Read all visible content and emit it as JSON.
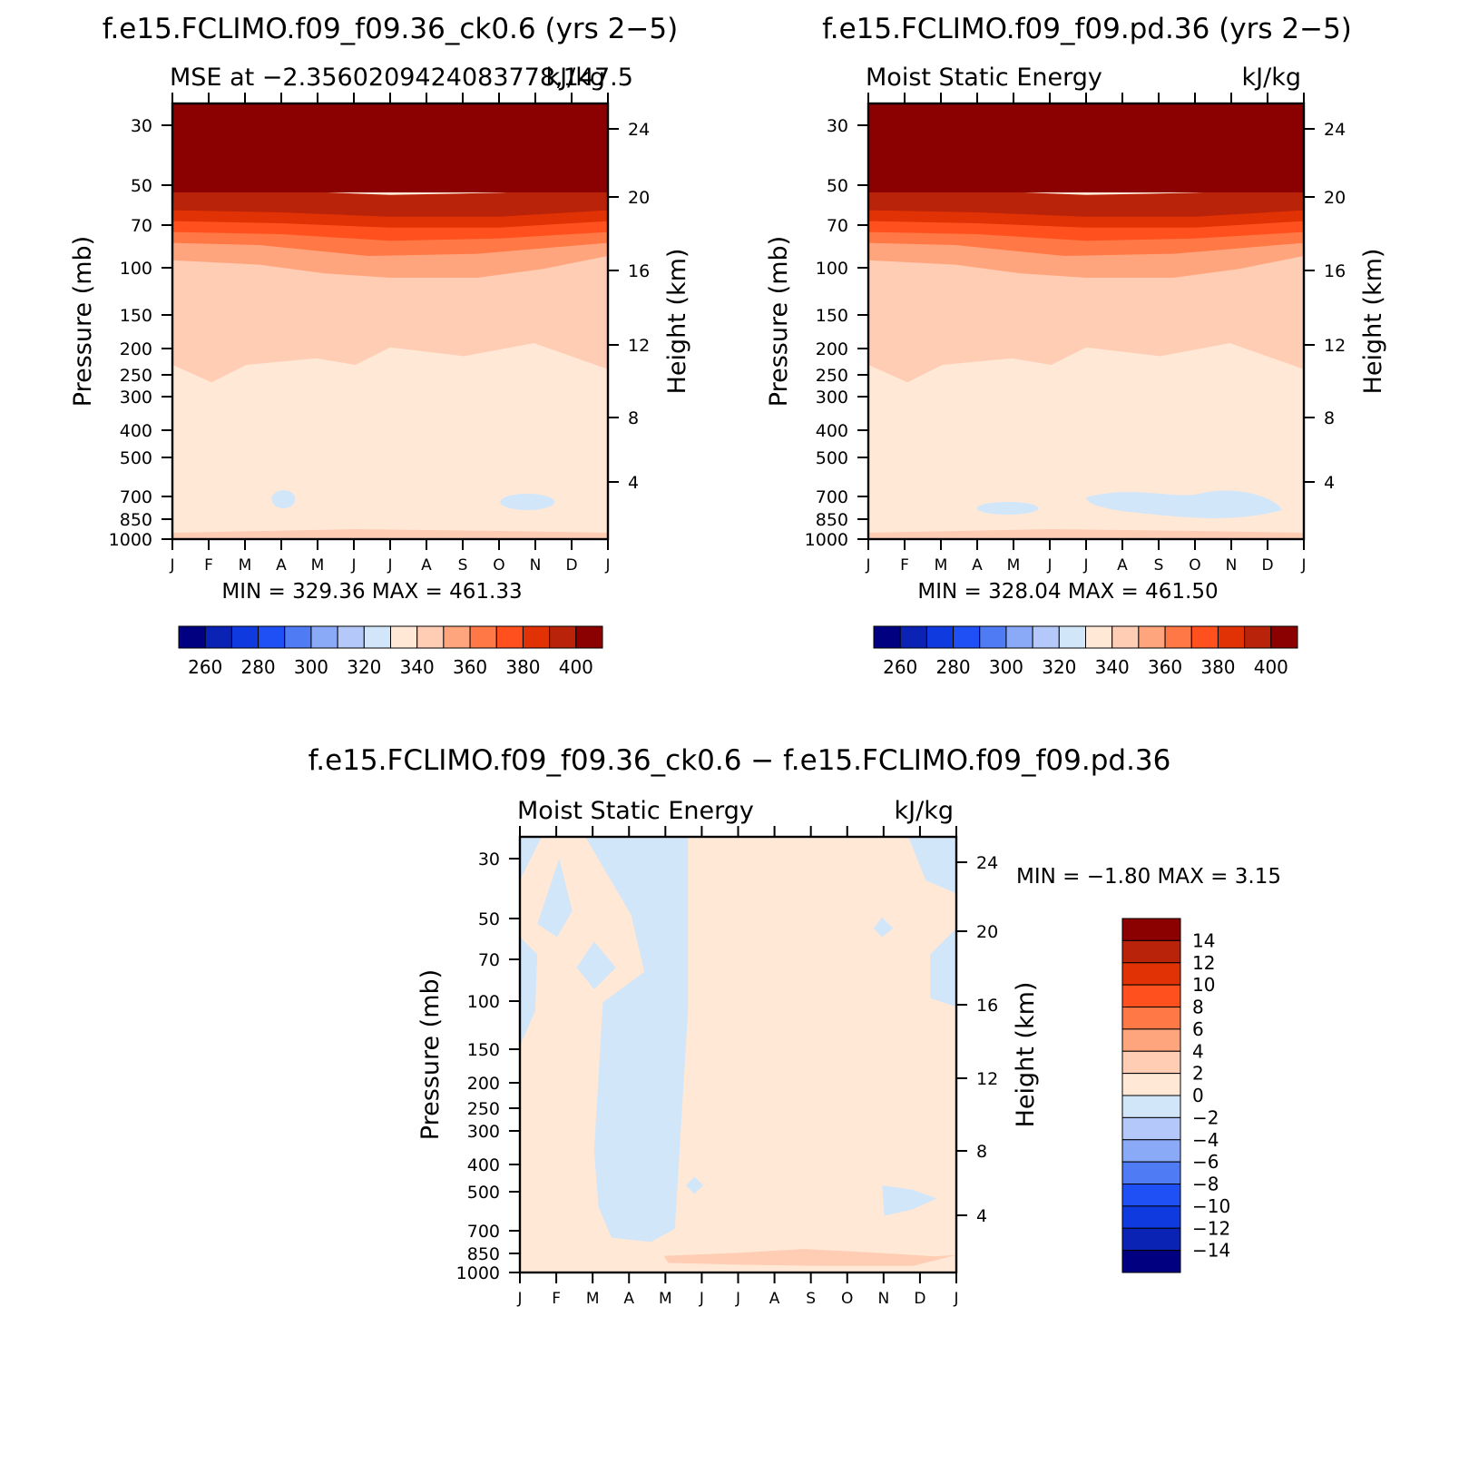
{
  "panels": [
    {
      "id": "top-left",
      "title": "f.e15.FCLIMO.f09_f09.36_ck0.6 (yrs 2−5)",
      "subtitle_left": "MSE at −2.3560209424083778,147.5",
      "subtitle_right": "kJ/kg",
      "minmax": "MIN = 329.36 MAX = 461.33",
      "ylabel": "Pressure (mb)",
      "ylabel_right": "Height (km)"
    },
    {
      "id": "top-right",
      "title": "f.e15.FCLIMO.f09_f09.pd.36 (yrs 2−5)",
      "subtitle_left": "Moist Static Energy",
      "subtitle_right": "kJ/kg",
      "minmax": "MIN = 328.04 MAX = 461.50",
      "ylabel": "Pressure (mb)",
      "ylabel_right": "Height (km)"
    },
    {
      "id": "bottom",
      "title": "f.e15.FCLIMO.f09_f09.36_ck0.6 − f.e15.FCLIMO.f09_f09.pd.36",
      "subtitle_left": "Moist Static Energy",
      "subtitle_right": "kJ/kg",
      "minmax": "MIN = −1.80 MAX = 3.15",
      "ylabel": "Pressure (mb)",
      "ylabel_right": "Height (km)"
    }
  ],
  "chart_data": [
    {
      "type": "heatmap",
      "panel": "top-left",
      "x_labels": [
        "J",
        "F",
        "M",
        "A",
        "M",
        "J",
        "J",
        "A",
        "S",
        "O",
        "N",
        "D",
        "J"
      ],
      "y_pressure_ticks": [
        30,
        50,
        70,
        100,
        150,
        200,
        250,
        300,
        400,
        500,
        700,
        850,
        1000
      ],
      "y_height_ticks_km": [
        24,
        20,
        16,
        12,
        8,
        4
      ],
      "colorbar": {
        "labels": [
          "260",
          "280",
          "300",
          "320",
          "340",
          "360",
          "380",
          "400"
        ],
        "colors": [
          "#000080",
          "#0a23b4",
          "#0f3ae0",
          "#1e50f5",
          "#4f7bf5",
          "#8aaaf7",
          "#b4c8fa",
          "#d2e6fa",
          "#ffe8d6",
          "#ffccb4",
          "#ffa57d",
          "#ff7846",
          "#ff501e",
          "#e13205",
          "#b9230a",
          "#8b0000"
        ]
      },
      "min": 329.36,
      "max": 461.33
    },
    {
      "type": "heatmap",
      "panel": "top-right",
      "x_labels": [
        "J",
        "F",
        "M",
        "A",
        "M",
        "J",
        "J",
        "A",
        "S",
        "O",
        "N",
        "D",
        "J"
      ],
      "y_pressure_ticks": [
        30,
        50,
        70,
        100,
        150,
        200,
        250,
        300,
        400,
        500,
        700,
        850,
        1000
      ],
      "y_height_ticks_km": [
        24,
        20,
        16,
        12,
        8,
        4
      ],
      "colorbar": {
        "labels": [
          "260",
          "280",
          "300",
          "320",
          "340",
          "360",
          "380",
          "400"
        ],
        "colors": [
          "#000080",
          "#0a23b4",
          "#0f3ae0",
          "#1e50f5",
          "#4f7bf5",
          "#8aaaf7",
          "#b4c8fa",
          "#d2e6fa",
          "#ffe8d6",
          "#ffccb4",
          "#ffa57d",
          "#ff7846",
          "#ff501e",
          "#e13205",
          "#b9230a",
          "#8b0000"
        ]
      },
      "min": 328.04,
      "max": 461.5
    },
    {
      "type": "heatmap",
      "panel": "bottom",
      "x_labels": [
        "J",
        "F",
        "M",
        "A",
        "M",
        "J",
        "J",
        "A",
        "S",
        "O",
        "N",
        "D",
        "J"
      ],
      "y_pressure_ticks": [
        30,
        50,
        70,
        100,
        150,
        200,
        250,
        300,
        400,
        500,
        700,
        850,
        1000
      ],
      "y_height_ticks_km": [
        24,
        20,
        16,
        12,
        8,
        4
      ],
      "colorbar": {
        "labels": [
          "14",
          "12",
          "10",
          "8",
          "6",
          "4",
          "2",
          "0",
          "−2",
          "−4",
          "−6",
          "−8",
          "−10",
          "−12",
          "−14"
        ],
        "colors": [
          "#8b0000",
          "#b9230a",
          "#e13205",
          "#ff501e",
          "#ff7846",
          "#ffa57d",
          "#ffccb4",
          "#ffe8d6",
          "#d2e6fa",
          "#b4c8fa",
          "#8aaaf7",
          "#4f7bf5",
          "#1e50f5",
          "#0f3ae0",
          "#0a23b4",
          "#000080"
        ]
      },
      "min": -1.8,
      "max": 3.15
    }
  ]
}
